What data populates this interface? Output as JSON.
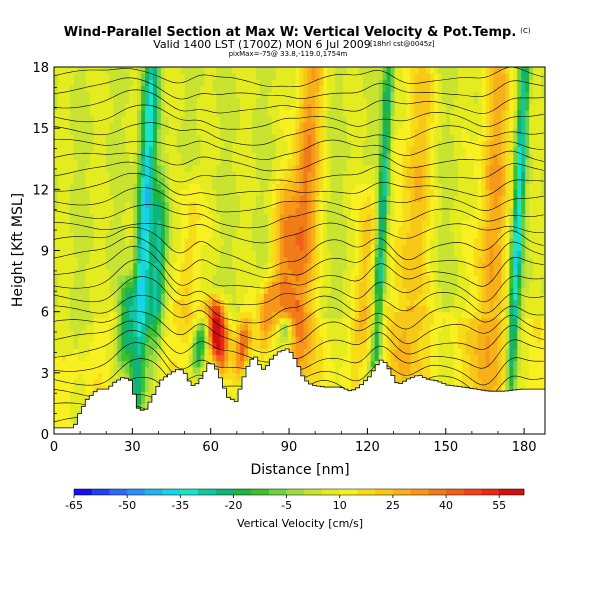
{
  "chart_data": {
    "type": "heatmap",
    "title": "Wind-Parallel Section at Max W: Vertical Velocity & Pot.Temp.",
    "title_tag": "(C)",
    "subtitle_main": "Valid 1400 LST (1700Z) MON 6 Jul 2009",
    "subtitle_tag": "[18hrl cst@0045z]",
    "subtitle_detail": "pixMax=-75@ 33.8,-119.0,1754m",
    "xlabel": "Distance [nm]",
    "ylabel": "Height [Kft MSL]",
    "xlim": [
      0,
      188
    ],
    "ylim": [
      0,
      18
    ],
    "x_ticks": [
      "0",
      "30",
      "60",
      "90",
      "120",
      "150",
      "180"
    ],
    "y_ticks": [
      "0",
      "3",
      "6",
      "9",
      "12",
      "15",
      "18"
    ],
    "colorbar": {
      "label": "Vertical Velocity [cm/s]",
      "tick_labels": [
        "-65",
        "-50",
        "-35",
        "-20",
        "-5",
        "10",
        "25",
        "40",
        "55"
      ],
      "tick_values": [
        -65,
        -50,
        -35,
        -20,
        -5,
        10,
        25,
        40,
        55
      ],
      "min": -65,
      "max": 62,
      "bands": [
        {
          "from": -65,
          "to": -60,
          "color": "#1010f0"
        },
        {
          "from": -60,
          "to": -55,
          "color": "#2040f8"
        },
        {
          "from": -55,
          "to": -50,
          "color": "#2a6cf8"
        },
        {
          "from": -50,
          "to": -45,
          "color": "#2c90f8"
        },
        {
          "from": -45,
          "to": -40,
          "color": "#20b4f0"
        },
        {
          "from": -40,
          "to": -35,
          "color": "#18d4e8"
        },
        {
          "from": -35,
          "to": -30,
          "color": "#18e4c8"
        },
        {
          "from": -30,
          "to": -25,
          "color": "#10c8a0"
        },
        {
          "from": -25,
          "to": -20,
          "color": "#10b478"
        },
        {
          "from": -20,
          "to": -15,
          "color": "#20b440"
        },
        {
          "from": -15,
          "to": -10,
          "color": "#40c030"
        },
        {
          "from": -10,
          "to": -5,
          "color": "#70d040"
        },
        {
          "from": -5,
          "to": 0,
          "color": "#a0dc40"
        },
        {
          "from": 0,
          "to": 5,
          "color": "#c8e430"
        },
        {
          "from": 5,
          "to": 10,
          "color": "#e4ec20"
        },
        {
          "from": 10,
          "to": 15,
          "color": "#f8f020"
        },
        {
          "from": 15,
          "to": 20,
          "color": "#f8dc18"
        },
        {
          "from": 20,
          "to": 25,
          "color": "#f8c818"
        },
        {
          "from": 25,
          "to": 30,
          "color": "#f8b018"
        },
        {
          "from": 30,
          "to": 35,
          "color": "#f89818"
        },
        {
          "from": 35,
          "to": 40,
          "color": "#f07c18"
        },
        {
          "from": 40,
          "to": 45,
          "color": "#f06018"
        },
        {
          "from": 45,
          "to": 50,
          "color": "#f04418"
        },
        {
          "from": 50,
          "to": 55,
          "color": "#e82818"
        },
        {
          "from": 55,
          "to": 62,
          "color": "#d01010"
        }
      ]
    },
    "background_w": 5,
    "updrafts": [
      {
        "x": 50,
        "z_top": 14,
        "w": 22,
        "width": 4
      },
      {
        "x": 62,
        "z_top": 7.2,
        "w": 58,
        "width": 4
      },
      {
        "x": 72,
        "z_top": 6,
        "w": 32,
        "width": 3
      },
      {
        "x": 80,
        "z_top": 8,
        "w": 26,
        "width": 3
      },
      {
        "x": 86,
        "z_top": 14,
        "w": 28,
        "width": 5
      },
      {
        "x": 93,
        "z_top": 18,
        "w": 38,
        "width": 5
      },
      {
        "x": 118,
        "z_top": 14,
        "w": 24,
        "width": 4
      },
      {
        "x": 135,
        "z_top": 18,
        "w": 26,
        "width": 6
      },
      {
        "x": 165,
        "z_top": 18,
        "w": 30,
        "width": 6
      }
    ],
    "downdrafts": [
      {
        "x": 27,
        "z_top": 8,
        "w": -30,
        "width": 3
      },
      {
        "x": 32,
        "z_top": 18,
        "w": -40,
        "width": 3
      },
      {
        "x": 38,
        "z_top": 14,
        "w": -25,
        "width": 3
      },
      {
        "x": 56,
        "z_top": 6,
        "w": -32,
        "width": 3
      },
      {
        "x": 88,
        "z_top": 6,
        "w": -28,
        "width": 3
      },
      {
        "x": 123,
        "z_top": 18,
        "w": -30,
        "width": 2
      },
      {
        "x": 175,
        "z_top": 18,
        "w": -35,
        "width": 2
      }
    ],
    "terrain": [
      [
        0,
        0.3
      ],
      [
        7,
        0.3
      ],
      [
        9,
        1.0
      ],
      [
        12,
        1.7
      ],
      [
        16,
        2.2
      ],
      [
        20,
        2.2
      ],
      [
        22,
        2.5
      ],
      [
        26,
        2.8
      ],
      [
        29,
        2.6
      ],
      [
        31,
        1.3
      ],
      [
        34,
        1.1
      ],
      [
        37,
        1.8
      ],
      [
        40,
        2.6
      ],
      [
        43,
        2.9
      ],
      [
        47,
        3.2
      ],
      [
        49,
        3.1
      ],
      [
        51,
        2.6
      ],
      [
        53,
        2.3
      ],
      [
        56,
        2.8
      ],
      [
        59,
        3.6
      ],
      [
        62,
        3.1
      ],
      [
        64,
        2.4
      ],
      [
        66,
        1.8
      ],
      [
        69,
        1.6
      ],
      [
        71,
        2.4
      ],
      [
        73,
        3.2
      ],
      [
        76,
        3.9
      ],
      [
        78,
        3.4
      ],
      [
        80,
        3.1
      ],
      [
        82,
        3.6
      ],
      [
        85,
        4.0
      ],
      [
        89,
        4.2
      ],
      [
        92,
        3.6
      ],
      [
        95,
        2.7
      ],
      [
        98,
        2.4
      ],
      [
        103,
        2.3
      ],
      [
        109,
        2.3
      ],
      [
        113,
        2.1
      ],
      [
        116,
        2.3
      ],
      [
        120,
        2.8
      ],
      [
        123,
        3.4
      ],
      [
        125,
        3.7
      ],
      [
        128,
        3.1
      ],
      [
        131,
        2.4
      ],
      [
        135,
        2.7
      ],
      [
        139,
        2.9
      ],
      [
        142,
        2.7
      ],
      [
        146,
        2.6
      ],
      [
        150,
        2.4
      ],
      [
        156,
        2.3
      ],
      [
        161,
        2.2
      ],
      [
        166,
        2.1
      ],
      [
        172,
        2.1
      ],
      [
        178,
        2.2
      ],
      [
        184,
        2.2
      ],
      [
        188,
        2.2
      ]
    ]
  }
}
